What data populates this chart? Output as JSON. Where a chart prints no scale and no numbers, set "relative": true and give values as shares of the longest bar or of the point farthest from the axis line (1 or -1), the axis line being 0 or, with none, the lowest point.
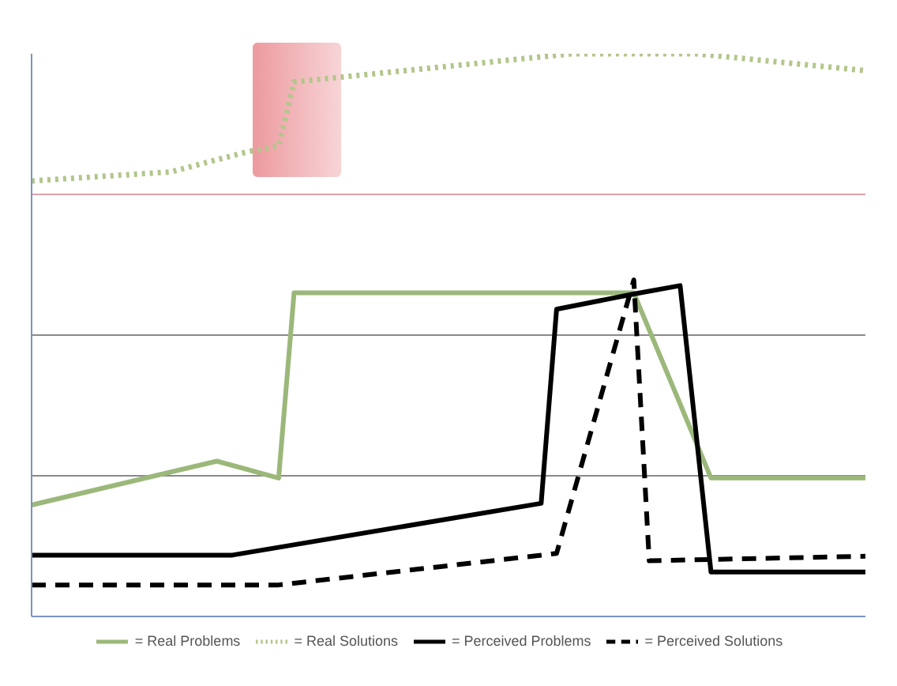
{
  "chart_data": {
    "type": "line",
    "relative": true,
    "categories": [
      null,
      null,
      null,
      null,
      null,
      null,
      null,
      null,
      null,
      null,
      null,
      null,
      null,
      null,
      null,
      null,
      null,
      null,
      null,
      null,
      null,
      null,
      null,
      null,
      null,
      null,
      null,
      null,
      null,
      null,
      null,
      null,
      null,
      null,
      null,
      null,
      null,
      null,
      null,
      null,
      null,
      null,
      null,
      null,
      null,
      null,
      null,
      null,
      null,
      null,
      null,
      null,
      null,
      null,
      null
    ],
    "series": [
      {
        "name": "= Real Problems",
        "color": "#9bb87a",
        "line_style": "solid",
        "values": [
          0.198,
          null,
          null,
          null,
          null,
          null,
          null,
          null,
          null,
          null,
          null,
          null,
          0.276,
          null,
          null,
          null,
          0.246,
          0.575,
          null,
          null,
          null,
          null,
          null,
          null,
          null,
          null,
          null,
          null,
          null,
          null,
          null,
          null,
          null,
          null,
          null,
          null,
          null,
          null,
          null,
          0.575,
          null,
          null,
          null,
          null,
          0.246,
          null,
          null,
          null,
          null,
          null,
          null,
          null,
          null,
          null,
          0.246
        ]
      },
      {
        "name": "= Real Solutions",
        "color": "#b3c68c",
        "line_style": "dotted",
        "values": [
          0.774,
          null,
          null,
          null,
          null,
          null,
          null,
          null,
          null,
          0.79,
          null,
          null,
          null,
          null,
          0.826,
          null,
          0.836,
          0.95,
          null,
          null,
          null,
          null,
          null,
          null,
          null,
          null,
          null,
          null,
          null,
          null,
          null,
          null,
          null,
          null,
          null,
          1.0,
          null,
          null,
          null,
          null,
          null,
          null,
          null,
          1.0,
          null,
          null,
          null,
          null,
          null,
          null,
          null,
          null,
          null,
          null,
          0.97
        ]
      },
      {
        "name": "= Perceived Problems",
        "color": "#000000",
        "line_style": "solid",
        "values": [
          0.109,
          null,
          null,
          null,
          null,
          null,
          null,
          null,
          null,
          null,
          null,
          null,
          null,
          0.109,
          null,
          null,
          null,
          null,
          null,
          null,
          null,
          null,
          null,
          null,
          null,
          null,
          null,
          null,
          null,
          null,
          null,
          null,
          null,
          0.201,
          0.546,
          null,
          null,
          null,
          null,
          0.573,
          null,
          null,
          0.588,
          null,
          0.079,
          null,
          null,
          null,
          null,
          null,
          null,
          null,
          null,
          null,
          0.079
        ]
      },
      {
        "name": "= Perceived Solutions",
        "color": "#000000",
        "line_style": "dashed",
        "values": [
          0.056,
          null,
          null,
          null,
          null,
          null,
          null,
          null,
          null,
          null,
          null,
          null,
          null,
          null,
          null,
          null,
          0.056,
          null,
          null,
          null,
          null,
          null,
          null,
          null,
          null,
          null,
          null,
          null,
          null,
          null,
          null,
          null,
          null,
          null,
          0.112,
          null,
          null,
          null,
          null,
          0.598,
          0.099,
          null,
          null,
          null,
          null,
          null,
          null,
          null,
          null,
          null,
          null,
          null,
          null,
          null,
          0.107
        ]
      }
    ],
    "ref_lines": [
      {
        "axis": "y",
        "value": 0.75,
        "color": "#d9a3aa"
      },
      {
        "axis": "y",
        "value": 0.5,
        "color": "#8a8a8a"
      },
      {
        "axis": "y",
        "value": 0.25,
        "color": "#8a8a8a"
      }
    ],
    "legend": "bottom"
  }
}
